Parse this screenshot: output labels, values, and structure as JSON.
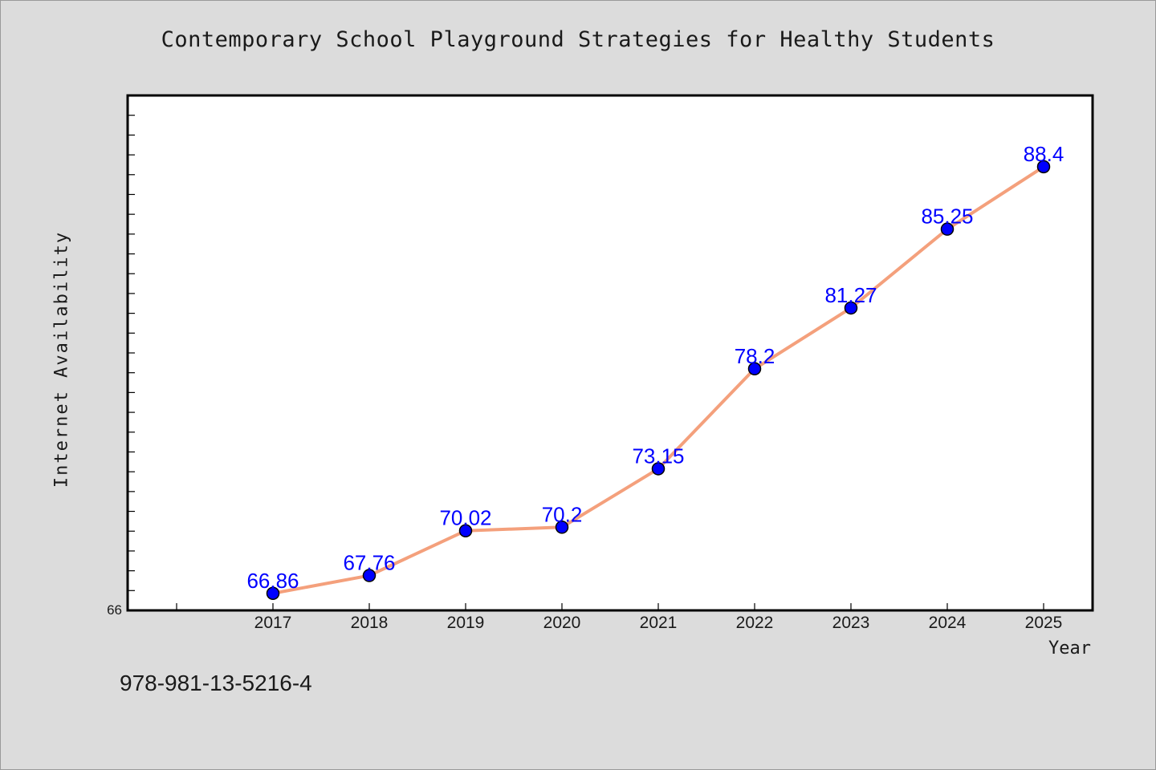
{
  "chart_data": {
    "type": "line",
    "title": "Contemporary School Playground Strategies for Healthy Students",
    "xlabel": "Year",
    "ylabel": "Internet Availability",
    "x": [
      "2017",
      "2018",
      "2019",
      "2020",
      "2021",
      "2022",
      "2023",
      "2024",
      "2025"
    ],
    "series": [
      {
        "values": [
          66.86,
          67.76,
          70.02,
          70.2,
          73.15,
          78.2,
          81.27,
          85.25,
          88.4
        ],
        "labels": [
          "66.86",
          "67.76",
          "70.02",
          "70.2",
          "73.15",
          "78.2",
          "81.27",
          "85.25",
          "88.4"
        ]
      }
    ],
    "ylim": [
      66,
      92
    ],
    "y_min_label": "66",
    "grid": false,
    "line_color": "#f4a07c",
    "marker_color": "#0000ff",
    "label_color": "#0000ff",
    "plot_background": "#ffffff",
    "page_background": "#dcdcdc"
  },
  "footer": {
    "code": "978-981-13-5216-4"
  }
}
